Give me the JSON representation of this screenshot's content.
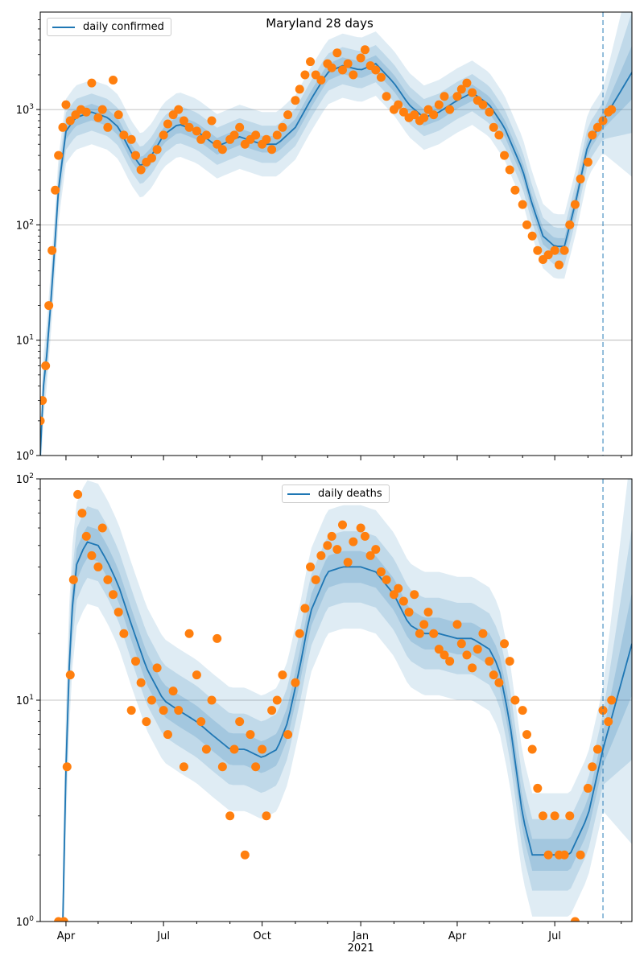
{
  "figure_title": "Maryland 28 days",
  "colors": {
    "line": "#1f77b4",
    "points": "#ff7f0e",
    "band": "#1f77b4",
    "grid": "#b0b0b0",
    "marker_line": "#1f77b4"
  },
  "chart_data": [
    {
      "type": "line",
      "legend": "daily confirmed",
      "legend_position": "top-left",
      "yscale": "log",
      "ylim": [
        1,
        7000
      ],
      "yticks": [
        "10^0",
        "10^1",
        "10^2",
        "10^3"
      ],
      "xlim": [
        "2020-03-08",
        "2021-09-11"
      ],
      "grid": "y-major",
      "forecast_start": "2021-08-15",
      "series": [
        {
          "role": "smoothed-line",
          "x": [
            "2020-03-08",
            "2020-03-11",
            "2020-03-15",
            "2020-03-20",
            "2020-03-25",
            "2020-04-01",
            "2020-04-10",
            "2020-04-25",
            "2020-05-10",
            "2020-05-20",
            "2020-06-01",
            "2020-06-10",
            "2020-06-20",
            "2020-07-01",
            "2020-07-15",
            "2020-08-01",
            "2020-08-20",
            "2020-09-10",
            "2020-10-01",
            "2020-10-15",
            "2020-11-01",
            "2020-11-15",
            "2020-12-01",
            "2020-12-15",
            "2021-01-01",
            "2021-01-15",
            "2021-02-01",
            "2021-02-15",
            "2021-03-01",
            "2021-03-15",
            "2021-04-01",
            "2021-04-15",
            "2021-05-01",
            "2021-05-15",
            "2021-06-01",
            "2021-06-10",
            "2021-06-20",
            "2021-07-01",
            "2021-07-10",
            "2021-07-20",
            "2021-08-01",
            "2021-08-15",
            "2021-09-11"
          ],
          "y": [
            1,
            4,
            9,
            40,
            200,
            650,
            850,
            950,
            850,
            700,
            420,
            320,
            400,
            600,
            750,
            650,
            480,
            580,
            500,
            500,
            700,
            1200,
            2100,
            2400,
            2200,
            2500,
            1700,
            1100,
            850,
            950,
            1200,
            1400,
            1100,
            700,
            300,
            150,
            80,
            65,
            65,
            150,
            500,
            800,
            2100
          ]
        },
        {
          "role": "observed-points",
          "x": [
            "2020-03-08",
            "2020-03-10",
            "2020-03-13",
            "2020-03-16",
            "2020-03-19",
            "2020-03-22",
            "2020-03-25",
            "2020-03-29",
            "2020-04-01",
            "2020-04-05",
            "2020-04-10",
            "2020-04-15",
            "2020-04-20",
            "2020-04-25",
            "2020-05-01",
            "2020-05-05",
            "2020-05-10",
            "2020-05-15",
            "2020-05-20",
            "2020-05-25",
            "2020-06-01",
            "2020-06-05",
            "2020-06-10",
            "2020-06-15",
            "2020-06-20",
            "2020-06-25",
            "2020-07-01",
            "2020-07-05",
            "2020-07-10",
            "2020-07-15",
            "2020-07-20",
            "2020-07-25",
            "2020-08-01",
            "2020-08-05",
            "2020-08-10",
            "2020-08-15",
            "2020-08-20",
            "2020-08-25",
            "2020-09-01",
            "2020-09-05",
            "2020-09-10",
            "2020-09-15",
            "2020-09-20",
            "2020-09-25",
            "2020-10-01",
            "2020-10-05",
            "2020-10-10",
            "2020-10-15",
            "2020-10-20",
            "2020-10-25",
            "2020-11-01",
            "2020-11-05",
            "2020-11-10",
            "2020-11-15",
            "2020-11-20",
            "2020-11-25",
            "2020-12-01",
            "2020-12-05",
            "2020-12-10",
            "2020-12-15",
            "2020-12-20",
            "2020-12-25",
            "2021-01-01",
            "2021-01-05",
            "2021-01-10",
            "2021-01-15",
            "2021-01-20",
            "2021-01-25",
            "2021-02-01",
            "2021-02-05",
            "2021-02-10",
            "2021-02-15",
            "2021-02-20",
            "2021-02-25",
            "2021-03-01",
            "2021-03-05",
            "2021-03-10",
            "2021-03-15",
            "2021-03-20",
            "2021-03-25",
            "2021-04-01",
            "2021-04-05",
            "2021-04-10",
            "2021-04-15",
            "2021-04-20",
            "2021-04-25",
            "2021-05-01",
            "2021-05-05",
            "2021-05-10",
            "2021-05-15",
            "2021-05-20",
            "2021-05-25",
            "2021-06-01",
            "2021-06-05",
            "2021-06-10",
            "2021-06-15",
            "2021-06-20",
            "2021-06-25",
            "2021-07-01",
            "2021-07-05",
            "2021-07-10",
            "2021-07-15",
            "2021-07-20",
            "2021-07-25",
            "2021-08-01",
            "2021-08-05",
            "2021-08-10",
            "2021-08-15",
            "2021-08-20",
            "2021-08-23"
          ],
          "y": [
            2,
            3,
            6,
            20,
            60,
            200,
            400,
            700,
            1100,
            800,
            900,
            1000,
            950,
            1700,
            850,
            1000,
            700,
            1800,
            900,
            600,
            550,
            400,
            300,
            350,
            380,
            450,
            600,
            750,
            900,
            1000,
            800,
            700,
            650,
            550,
            600,
            800,
            500,
            450,
            550,
            600,
            700,
            500,
            550,
            600,
            500,
            550,
            450,
            600,
            700,
            900,
            1200,
            1500,
            2000,
            2600,
            2000,
            1800,
            2500,
            2300,
            3100,
            2200,
            2500,
            2000,
            2800,
            3300,
            2400,
            2200,
            1900,
            1300,
            1000,
            1100,
            950,
            850,
            900,
            800,
            850,
            1000,
            900,
            1100,
            1300,
            1000,
            1300,
            1500,
            1700,
            1400,
            1200,
            1100,
            950,
            700,
            600,
            400,
            300,
            200,
            150,
            100,
            80,
            60,
            50,
            55,
            60,
            45,
            60,
            100,
            150,
            250,
            350,
            600,
            700,
            800,
            950,
            1000
          ]
        }
      ]
    },
    {
      "type": "line",
      "legend": "daily deaths",
      "legend_position": "top-center",
      "xlabel": "2021",
      "yscale": "log",
      "ylim": [
        1,
        100
      ],
      "yticks": [
        "10^0",
        "10^1",
        "10^2"
      ],
      "xlim": [
        "2020-03-08",
        "2021-09-11"
      ],
      "xticks": [
        "Apr",
        "Jul",
        "Oct",
        "Jan",
        "Apr",
        "Jul"
      ],
      "grid": "y-major",
      "forecast_start": "2021-08-15",
      "series": [
        {
          "role": "smoothed-line",
          "x": [
            "2020-03-29",
            "2020-04-01",
            "2020-04-05",
            "2020-04-10",
            "2020-04-20",
            "2020-05-01",
            "2020-05-10",
            "2020-05-20",
            "2020-06-01",
            "2020-06-15",
            "2020-07-01",
            "2020-07-15",
            "2020-08-01",
            "2020-08-15",
            "2020-09-01",
            "2020-09-15",
            "2020-10-01",
            "2020-10-15",
            "2020-10-25",
            "2020-11-05",
            "2020-11-15",
            "2020-12-01",
            "2020-12-15",
            "2021-01-01",
            "2021-01-15",
            "2021-02-01",
            "2021-02-15",
            "2021-03-01",
            "2021-03-15",
            "2021-04-01",
            "2021-04-15",
            "2021-05-01",
            "2021-05-10",
            "2021-05-20",
            "2021-06-01",
            "2021-06-10",
            "2021-06-20",
            "2021-07-01",
            "2021-07-15",
            "2021-08-01",
            "2021-08-15",
            "2021-09-11"
          ],
          "y": [
            1,
            5,
            20,
            40,
            52,
            50,
            42,
            33,
            22,
            14,
            10,
            9,
            8,
            7,
            6,
            6,
            5.5,
            6,
            8,
            14,
            25,
            38,
            40,
            40,
            38,
            30,
            22,
            20,
            20,
            19,
            19,
            17,
            14,
            8,
            3,
            2,
            2,
            2,
            2,
            3,
            6,
            18
          ]
        },
        {
          "role": "observed-points",
          "x": [
            "2020-03-25",
            "2020-03-30",
            "2020-04-02",
            "2020-04-05",
            "2020-04-08",
            "2020-04-12",
            "2020-04-16",
            "2020-04-20",
            "2020-04-25",
            "2020-05-01",
            "2020-05-05",
            "2020-05-10",
            "2020-05-15",
            "2020-05-20",
            "2020-05-25",
            "2020-06-01",
            "2020-06-05",
            "2020-06-10",
            "2020-06-15",
            "2020-06-20",
            "2020-06-25",
            "2020-07-01",
            "2020-07-05",
            "2020-07-10",
            "2020-07-15",
            "2020-07-20",
            "2020-07-25",
            "2020-08-01",
            "2020-08-05",
            "2020-08-10",
            "2020-08-15",
            "2020-08-20",
            "2020-08-25",
            "2020-09-01",
            "2020-09-05",
            "2020-09-10",
            "2020-09-15",
            "2020-09-20",
            "2020-09-25",
            "2020-10-01",
            "2020-10-05",
            "2020-10-10",
            "2020-10-15",
            "2020-10-20",
            "2020-10-25",
            "2020-11-01",
            "2020-11-05",
            "2020-11-10",
            "2020-11-15",
            "2020-11-20",
            "2020-11-25",
            "2020-12-01",
            "2020-12-05",
            "2020-12-10",
            "2020-12-15",
            "2020-12-20",
            "2020-12-25",
            "2021-01-01",
            "2021-01-05",
            "2021-01-10",
            "2021-01-15",
            "2021-01-20",
            "2021-01-25",
            "2021-02-01",
            "2021-02-05",
            "2021-02-10",
            "2021-02-15",
            "2021-02-20",
            "2021-02-25",
            "2021-03-01",
            "2021-03-05",
            "2021-03-10",
            "2021-03-15",
            "2021-03-20",
            "2021-03-25",
            "2021-04-01",
            "2021-04-05",
            "2021-04-10",
            "2021-04-15",
            "2021-04-20",
            "2021-04-25",
            "2021-05-01",
            "2021-05-05",
            "2021-05-10",
            "2021-05-15",
            "2021-05-20",
            "2021-05-25",
            "2021-06-01",
            "2021-06-05",
            "2021-06-10",
            "2021-06-15",
            "2021-06-20",
            "2021-06-25",
            "2021-07-01",
            "2021-07-05",
            "2021-07-10",
            "2021-07-15",
            "2021-07-20",
            "2021-07-25",
            "2021-08-01",
            "2021-08-05",
            "2021-08-10",
            "2021-08-15",
            "2021-08-20",
            "2021-08-23"
          ],
          "y": [
            1,
            1,
            5,
            13,
            35,
            85,
            70,
            55,
            45,
            40,
            60,
            35,
            30,
            25,
            20,
            9,
            15,
            12,
            8,
            10,
            14,
            9,
            7,
            11,
            9,
            5,
            20,
            13,
            8,
            6,
            10,
            19,
            5,
            3,
            6,
            8,
            2,
            7,
            5,
            6,
            3,
            9,
            10,
            13,
            7,
            12,
            20,
            26,
            40,
            35,
            45,
            50,
            55,
            48,
            62,
            42,
            52,
            60,
            55,
            45,
            48,
            38,
            35,
            30,
            32,
            28,
            25,
            30,
            20,
            22,
            25,
            20,
            17,
            16,
            15,
            22,
            18,
            16,
            14,
            17,
            20,
            15,
            13,
            12,
            18,
            15,
            10,
            9,
            7,
            6,
            4,
            3,
            2,
            3,
            2,
            2,
            3,
            1,
            2,
            4,
            5,
            6,
            9,
            8,
            10
          ]
        }
      ]
    }
  ]
}
